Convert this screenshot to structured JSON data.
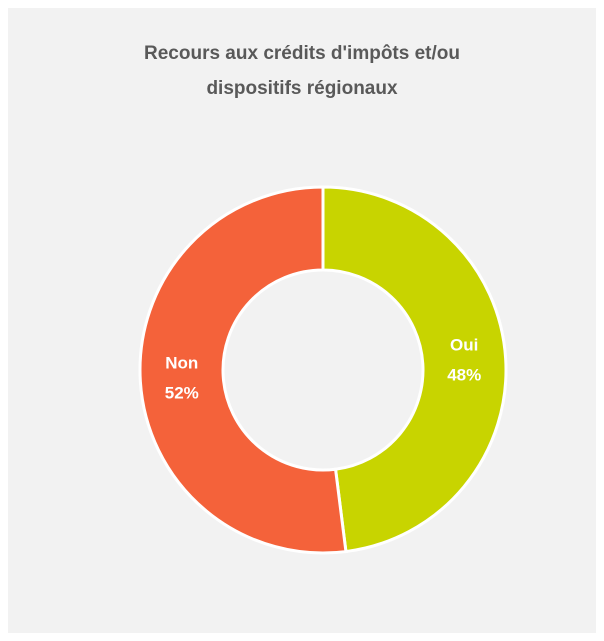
{
  "chart_data": {
    "type": "donut",
    "title": "Recours aux crédits d'impôts et/ou dispositifs régionaux",
    "categories": [
      "Oui",
      "Non"
    ],
    "values": [
      48,
      52
    ],
    "value_labels": [
      "48%",
      "52%"
    ],
    "colors": [
      "#c8d400",
      "#f4623a"
    ]
  }
}
